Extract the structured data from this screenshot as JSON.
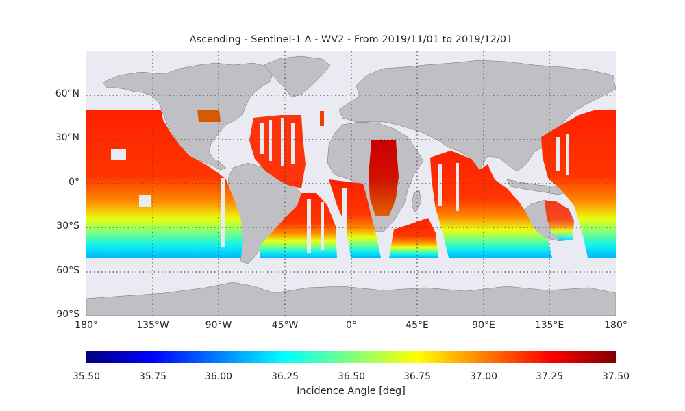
{
  "title": "Ascending - Sentinel-1 A - WV2 - From 2019/11/01 to 2019/12/01",
  "lat_ticks": [
    "60°N",
    "30°N",
    "0°",
    "30°S",
    "60°S",
    "90°S"
  ],
  "lon_ticks": [
    "180°",
    "135°W",
    "90°W",
    "45°W",
    "0°",
    "45°E",
    "90°E",
    "135°E",
    "180°"
  ],
  "colorbar": {
    "label": "Incidence Angle [deg]",
    "ticks": [
      "35.50",
      "35.75",
      "36.00",
      "36.25",
      "36.50",
      "36.75",
      "37.00",
      "37.25",
      "37.50"
    ],
    "range": [
      35.5,
      37.5
    ],
    "colormap": "jet"
  },
  "colors": {
    "ocean": "#eaeaf2",
    "land": "#bfbfc4",
    "grid": "#444444"
  },
  "map": {
    "projection": "plate-carree",
    "lon_range": [
      -180,
      180
    ],
    "lat_range": [
      -90,
      90
    ],
    "gridlines": "dotted"
  }
}
